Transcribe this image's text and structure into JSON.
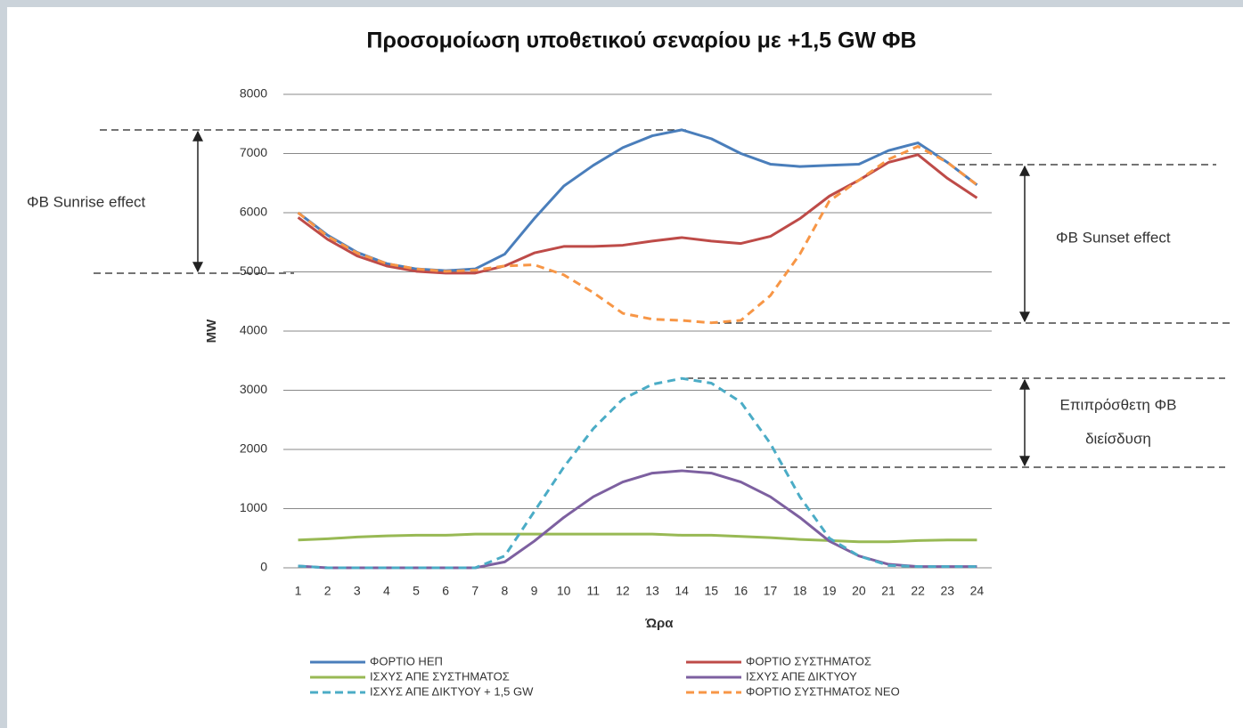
{
  "chart_data": {
    "type": "line",
    "title": "Προσομοίωση υποθετικού σεναρίου με +1,5 GW ΦΒ",
    "y_label": "MW",
    "x_label": "Ώρα",
    "categories": [
      1,
      2,
      3,
      4,
      5,
      6,
      7,
      8,
      9,
      10,
      11,
      12,
      13,
      14,
      15,
      16,
      17,
      18,
      19,
      20,
      21,
      22,
      23,
      24
    ],
    "ylim": [
      0,
      8000
    ],
    "yticks": [
      0,
      1000,
      2000,
      3000,
      4000,
      5000,
      6000,
      7000,
      8000
    ],
    "grid": true,
    "series": [
      {
        "name": "ΦΟΡΤΙΟ ΗΕΠ",
        "color": "#4a7ebb",
        "dashed": false,
        "values": [
          6000,
          5620,
          5330,
          5140,
          5050,
          5020,
          5050,
          5300,
          5900,
          6450,
          6800,
          7100,
          7300,
          7400,
          7250,
          7000,
          6820,
          6780,
          6800,
          6820,
          7050,
          7180,
          6850,
          6470
        ]
      },
      {
        "name": "ΦΟΡΤΙΟ ΣΥΣΤΗΜΑΤΟΣ",
        "color": "#be4b48",
        "dashed": false,
        "values": [
          5920,
          5550,
          5270,
          5100,
          5010,
          4980,
          4980,
          5100,
          5320,
          5430,
          5430,
          5450,
          5520,
          5580,
          5520,
          5480,
          5600,
          5900,
          6280,
          6550,
          6850,
          6980,
          6580,
          6250
        ]
      },
      {
        "name": "ΙΣΧΥΣ ΑΠΕ ΣΥΣΤΗΜΑΤΟΣ",
        "color": "#98b954",
        "dashed": false,
        "values": [
          470,
          490,
          520,
          540,
          550,
          550,
          570,
          570,
          570,
          570,
          570,
          570,
          570,
          550,
          550,
          530,
          510,
          480,
          460,
          440,
          440,
          460,
          470,
          470
        ]
      },
      {
        "name": "ΙΣΧΥΣ ΑΠΕ ΔΙΚΤΥΟΥ",
        "color": "#7d60a0",
        "dashed": false,
        "values": [
          30,
          0,
          0,
          0,
          0,
          0,
          0,
          100,
          450,
          850,
          1200,
          1450,
          1600,
          1640,
          1600,
          1450,
          1200,
          850,
          450,
          200,
          60,
          20,
          20,
          20
        ]
      },
      {
        "name": "ΙΣΧΥΣ ΑΠΕ ΔΙΚΤΥΟΥ + 1,5 GW",
        "color": "#4bacc6",
        "dashed": true,
        "values": [
          30,
          0,
          0,
          0,
          0,
          0,
          0,
          200,
          950,
          1700,
          2350,
          2850,
          3100,
          3200,
          3120,
          2800,
          2100,
          1200,
          500,
          200,
          40,
          20,
          20,
          20
        ]
      },
      {
        "name": "ΦΟΡΤΙΟ ΣΥΣΤΗΜΑΤΟΣ ΝΕΟ",
        "color": "#f79646",
        "dashed": true,
        "values": [
          6000,
          5600,
          5320,
          5140,
          5050,
          5010,
          5030,
          5100,
          5120,
          4950,
          4650,
          4300,
          4200,
          4180,
          4140,
          4180,
          4600,
          5300,
          6200,
          6550,
          6900,
          7120,
          6850,
          6470
        ]
      }
    ],
    "annotations": [
      "ΦΒ Sunrise effect",
      "ΦΒ Sunset effect",
      "Επιπρόσθετη ΦΒ",
      "διείσδυση"
    ]
  }
}
